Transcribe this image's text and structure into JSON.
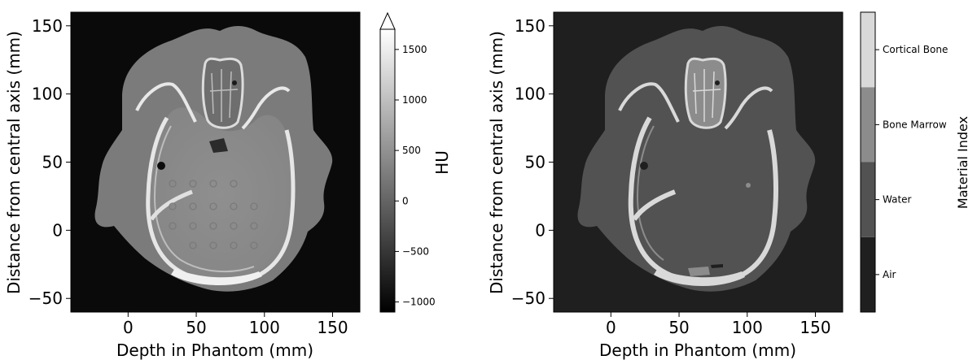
{
  "chart_data": [
    {
      "type": "heatmap",
      "description_type": "CT image (grayscale)",
      "xlabel": "Depth in Phantom (mm)",
      "ylabel": "Distance from central axis (mm)",
      "xlim": [
        -42,
        170
      ],
      "ylim": [
        -60,
        160
      ],
      "xticks": [
        0,
        50,
        100,
        150
      ],
      "xtick_labels": [
        "0",
        "50",
        "100",
        "150"
      ],
      "yticks": [
        -50,
        0,
        50,
        100,
        150
      ],
      "ytick_labels": [
        "−50",
        "0",
        "50",
        "100",
        "150"
      ],
      "colorbar": {
        "label": "HU",
        "range": [
          -1100,
          1700
        ],
        "extend": "max",
        "ticks": [
          -1000,
          -500,
          0,
          500,
          1000,
          1500
        ],
        "tick_labels": [
          "−1000",
          "−500",
          "0",
          "500",
          "1000",
          "1500"
        ],
        "colormap": [
          "#000000",
          "#ffffff"
        ]
      }
    },
    {
      "type": "heatmap",
      "description_type": "material index map (categorical)",
      "xlabel": "Depth in Phantom (mm)",
      "ylabel": "Distance from central axis (mm)",
      "xlim": [
        -42,
        170
      ],
      "ylim": [
        -60,
        160
      ],
      "xticks": [
        0,
        50,
        100,
        150
      ],
      "xtick_labels": [
        "0",
        "50",
        "100",
        "150"
      ],
      "yticks": [
        -50,
        0,
        50,
        100,
        150
      ],
      "ytick_labels": [
        "−50",
        "0",
        "50",
        "100",
        "150"
      ],
      "colorbar": {
        "label": "Material Index",
        "categories": [
          "Air",
          "Water",
          "Bone Marrow",
          "Cortical Bone"
        ],
        "colors": [
          "#1f1f1f",
          "#525252",
          "#8c8c8c",
          "#d9d9d9"
        ]
      }
    }
  ],
  "colors": {
    "ct_background": "#0a0a0a",
    "ct_soft_tissue": "#7a7a7a",
    "ct_brain": "#8e8e8e",
    "ct_bone": "#ececec",
    "mat_air": "#1f1f1f",
    "mat_water": "#525252",
    "mat_marrow": "#8c8c8c",
    "mat_bone": "#d9d9d9"
  }
}
